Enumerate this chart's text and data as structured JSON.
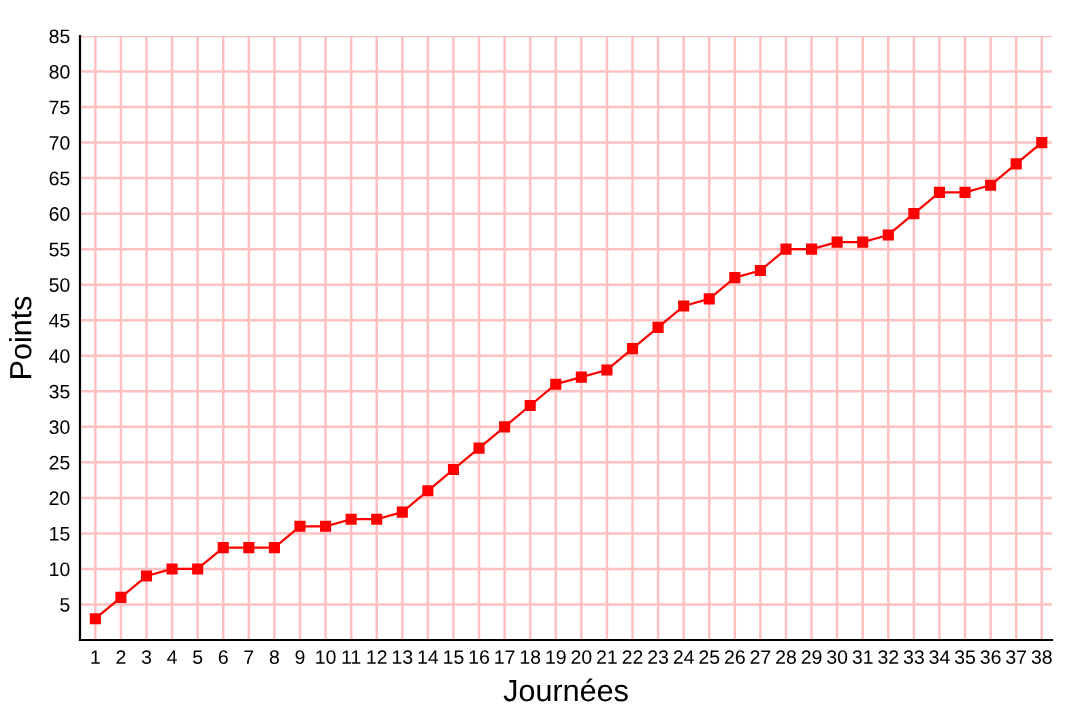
{
  "chart_data": {
    "type": "line",
    "xlabel": "Journées",
    "ylabel": "Points",
    "categories": [
      "1",
      "2",
      "3",
      "4",
      "5",
      "6",
      "7",
      "8",
      "9",
      "10",
      "11",
      "12",
      "13",
      "14",
      "15",
      "16",
      "17",
      "18",
      "19",
      "20",
      "21",
      "22",
      "23",
      "24",
      "25",
      "26",
      "27",
      "28",
      "29",
      "30",
      "31",
      "32",
      "33",
      "34",
      "35",
      "36",
      "37",
      "38"
    ],
    "series": [
      {
        "color": "#ff0000",
        "values": [
          3,
          6,
          9,
          10,
          10,
          13,
          13,
          13,
          16,
          16,
          17,
          17,
          18,
          21,
          24,
          27,
          30,
          33,
          36,
          37,
          38,
          41,
          44,
          47,
          48,
          51,
          52,
          55,
          55,
          56,
          56,
          57,
          60,
          63,
          63,
          64,
          67,
          70
        ]
      }
    ],
    "ylim": [
      0,
      85
    ],
    "yticks": [
      5,
      10,
      15,
      20,
      25,
      30,
      35,
      40,
      45,
      50,
      55,
      60,
      65,
      70,
      75,
      80,
      85
    ],
    "grid": true,
    "marker": "square",
    "line_style": "solid"
  }
}
